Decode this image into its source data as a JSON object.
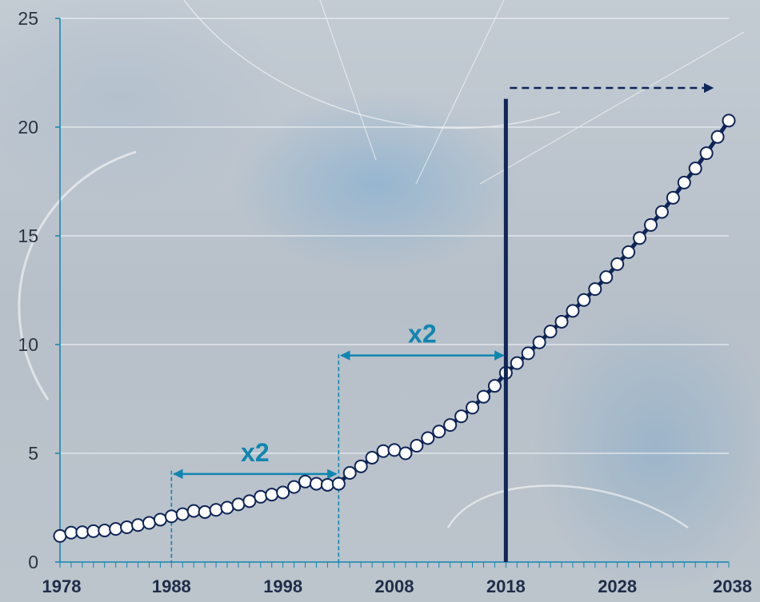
{
  "chart_data": {
    "type": "line",
    "title": "",
    "xlabel": "",
    "ylabel": "",
    "xlim": [
      1978,
      2038
    ],
    "ylim": [
      0,
      25
    ],
    "y_ticks": [
      "0",
      "5",
      "10",
      "15",
      "20",
      "25"
    ],
    "x_tick_labels": [
      "1978",
      "1988",
      "1998",
      "2008",
      "2018",
      "2028",
      "2038"
    ],
    "grid": "horizontal",
    "series": [
      {
        "x": [
          1978,
          1979,
          1980,
          1981,
          1982,
          1983,
          1984,
          1985,
          1986,
          1987,
          1988,
          1989,
          1990,
          1991,
          1992,
          1993,
          1994,
          1995,
          1996,
          1997,
          1998,
          1999,
          2000,
          2001,
          2002,
          2003,
          2004,
          2005,
          2006,
          2007,
          2008,
          2009,
          2010,
          2011,
          2012,
          2013,
          2014,
          2015,
          2016,
          2017,
          2018,
          2019,
          2020,
          2021,
          2022,
          2023,
          2024,
          2025,
          2026,
          2027,
          2028,
          2029,
          2030,
          2031,
          2032,
          2033,
          2034,
          2035,
          2036,
          2037,
          2038
        ],
        "values": [
          1.2,
          1.35,
          1.37,
          1.42,
          1.45,
          1.52,
          1.6,
          1.7,
          1.8,
          1.95,
          2.1,
          2.2,
          2.35,
          2.3,
          2.4,
          2.5,
          2.65,
          2.8,
          3.0,
          3.1,
          3.2,
          3.45,
          3.7,
          3.6,
          3.55,
          3.6,
          4.1,
          4.4,
          4.8,
          5.1,
          5.15,
          5.0,
          5.35,
          5.7,
          6.0,
          6.3,
          6.7,
          7.1,
          7.6,
          8.1,
          8.7,
          9.15,
          9.6,
          10.1,
          10.6,
          11.05,
          11.55,
          12.05,
          12.55,
          13.1,
          13.7,
          14.25,
          14.9,
          15.5,
          16.1,
          16.75,
          17.45,
          18.1,
          18.8,
          19.55,
          20.3
        ]
      }
    ],
    "annotations": [
      {
        "text": "x2",
        "from": 1988,
        "to": 2003
      },
      {
        "text": "x2",
        "from": 2003,
        "to": 2018
      }
    ],
    "marker_line_year": 2018,
    "forecast_arrow": {
      "from": 2018,
      "to": 2038
    },
    "colors": {
      "line": "#0f2557",
      "annotation": "#0f86b0",
      "grid": "#e8edf2"
    }
  }
}
